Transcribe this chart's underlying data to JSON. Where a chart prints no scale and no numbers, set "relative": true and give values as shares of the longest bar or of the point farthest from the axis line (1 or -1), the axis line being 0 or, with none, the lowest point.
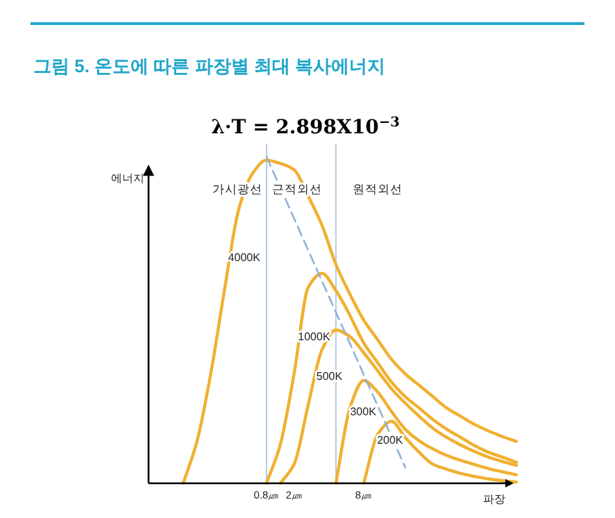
{
  "chart_data": {
    "type": "line",
    "title": "그림 5. 온도에 따른 파장별 최대 복사에너지",
    "subtitle": "λ·T = 2.898X10$^{−3}$",
    "xlabel": "파장",
    "ylabel": "에너지",
    "relative": true,
    "marker": "none",
    "categories": [
      null,
      null,
      null,
      null,
      null,
      null,
      null,
      null,
      "0.8㎛",
      null,
      "2㎛",
      null,
      null,
      null,
      null,
      "8㎛",
      null,
      null,
      null,
      null,
      null,
      null,
      null,
      null,
      null,
      null,
      null
    ],
    "annotations": [
      "가시광선",
      "근적외선",
      "원적외선"
    ],
    "series": [
      {
        "name": "4000K",
        "color": "#f0b030",
        "values": [
          null,
          null,
          0,
          0.13,
          0.34,
          0.6,
          0.84,
          0.95,
          0.99,
          0.98,
          0.96,
          0.88,
          0.79,
          0.67,
          0.58,
          0.5,
          0.44,
          0.38,
          0.335,
          0.3,
          0.265,
          0.23,
          0.205,
          0.18,
          0.16,
          0.143,
          0.128
        ]
      },
      {
        "name": "1000K",
        "color": "#f0b030",
        "values": [
          null,
          null,
          null,
          null,
          null,
          null,
          null,
          null,
          0,
          0.12,
          0.34,
          0.6,
          0.643,
          0.59,
          0.515,
          0.43,
          0.37,
          0.31,
          0.265,
          0.23,
          0.195,
          0.165,
          0.14,
          0.115,
          0.095,
          0.08,
          0.064
        ]
      },
      {
        "name": "500K",
        "color": "#f0b030",
        "values": [
          null,
          null,
          null,
          null,
          null,
          null,
          null,
          null,
          null,
          0,
          0.06,
          0.24,
          0.41,
          0.47,
          0.45,
          0.4,
          0.345,
          0.29,
          0.245,
          0.205,
          0.168,
          0.14,
          0.117,
          0.097,
          0.08,
          0.067,
          0.055
        ]
      },
      {
        "name": "300K",
        "color": "#f0b030",
        "values": [
          null,
          null,
          null,
          null,
          null,
          null,
          null,
          null,
          null,
          null,
          null,
          null,
          null,
          0,
          0.23,
          0.315,
          0.28,
          0.22,
          0.165,
          0.13,
          0.105,
          0.085,
          0.07,
          0.057,
          0.045,
          0.035,
          0.026
        ]
      },
      {
        "name": "200K",
        "color": "#f0b030",
        "values": [
          null,
          null,
          null,
          null,
          null,
          null,
          null,
          null,
          null,
          null,
          null,
          null,
          null,
          null,
          null,
          0,
          0.149,
          0.19,
          0.14,
          0.095,
          0.058,
          0.043,
          0.03,
          0.021,
          0.013,
          0.008,
          0.004
        ]
      },
      {
        "color": "#8fb0d8",
        "line_style": "dashed",
        "values": [
          null,
          null,
          null,
          null,
          null,
          null,
          null,
          null,
          1,
          0.905,
          0.81,
          0.714,
          0.619,
          0.524,
          0.429,
          0.333,
          0.238,
          0.143,
          0.048,
          null,
          null,
          null,
          null,
          null,
          null,
          null,
          null
        ]
      }
    ]
  }
}
